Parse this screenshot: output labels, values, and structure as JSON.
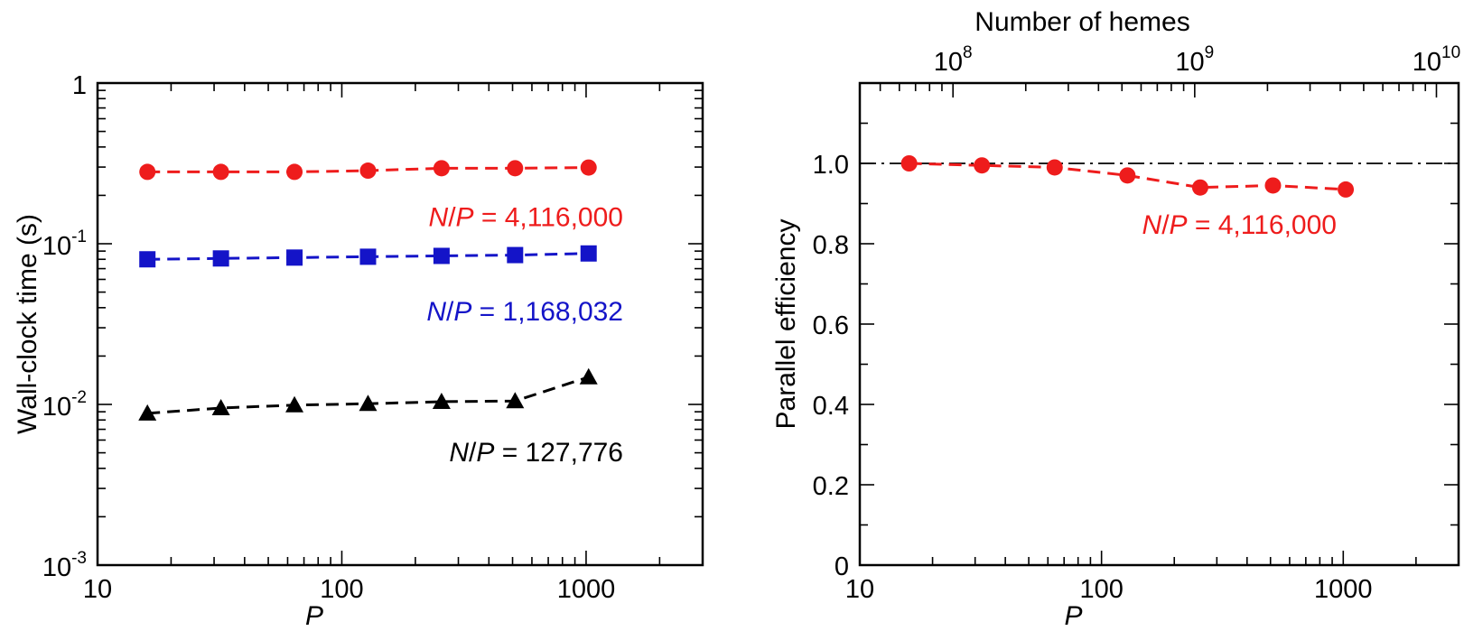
{
  "chart_data": [
    {
      "type": "line",
      "xlabel": "P",
      "ylabel": "Wall-clock time (s)",
      "xscale": "log",
      "yscale": "log",
      "xlim": [
        10,
        3000
      ],
      "ylim": [
        0.001,
        1
      ],
      "xticks": [
        {
          "value": 10,
          "label": "10"
        },
        {
          "value": 100,
          "label": "100"
        },
        {
          "value": 1000,
          "label": "1000"
        }
      ],
      "yticks": [
        {
          "value": 0.001,
          "base": "10",
          "exp": "-3"
        },
        {
          "value": 0.01,
          "base": "10",
          "exp": "-2"
        },
        {
          "value": 0.1,
          "base": "10",
          "exp": "-1"
        },
        {
          "value": 1,
          "base": "1",
          "exp": ""
        }
      ],
      "grid": false,
      "series": [
        {
          "color": "#ee1c1c",
          "marker": "circle",
          "x": [
            16,
            32,
            64,
            128,
            256,
            512,
            1024
          ],
          "y": [
            0.28,
            0.28,
            0.28,
            0.285,
            0.295,
            0.295,
            0.298
          ],
          "annotation": {
            "italic1": "N",
            "slash": "/",
            "italic2": "P",
            "rest": " = 4,116,000",
            "x": 690,
            "y": 0.148
          }
        },
        {
          "color": "#1414c8",
          "marker": "square",
          "x": [
            16,
            32,
            64,
            128,
            256,
            512,
            1024
          ],
          "y": [
            0.08,
            0.081,
            0.082,
            0.083,
            0.084,
            0.085,
            0.087
          ],
          "annotation": {
            "italic1": "N",
            "slash": "/",
            "italic2": "P",
            "rest": " = 1,168,032",
            "x": 690,
            "y": 0.0385
          }
        },
        {
          "color": "#000000",
          "marker": "triangle",
          "x": [
            16,
            32,
            64,
            128,
            256,
            512,
            1024
          ],
          "y": [
            0.0088,
            0.0095,
            0.0099,
            0.0101,
            0.0104,
            0.0105,
            0.0148
          ],
          "annotation": {
            "italic1": "N",
            "slash": "/",
            "italic2": "P",
            "rest": " = 127,776",
            "x": 690,
            "y": 0.0051
          }
        }
      ]
    },
    {
      "type": "line",
      "xlabel": "P",
      "ylabel": "Parallel efficiency",
      "x2label": "Number of hemes",
      "xscale": "log",
      "xlim": [
        10,
        3000
      ],
      "ylim": [
        0,
        1.2
      ],
      "xticks": [
        {
          "value": 10,
          "label": "10"
        },
        {
          "value": 100,
          "label": "100"
        },
        {
          "value": 1000,
          "label": "1000"
        }
      ],
      "yticks": [
        {
          "value": 0,
          "label": "0"
        },
        {
          "value": 0.2,
          "label": "0.2"
        },
        {
          "value": 0.4,
          "label": "0.4"
        },
        {
          "value": 0.6,
          "label": "0.6"
        },
        {
          "value": 0.8,
          "label": "0.8"
        },
        {
          "value": 1.0,
          "label": "1.0"
        }
      ],
      "x2ticks": [
        {
          "value": 100000000,
          "base": "10",
          "exp": "8"
        },
        {
          "value": 1000000000,
          "base": "10",
          "exp": "9"
        },
        {
          "value": 10000000000,
          "base": "10",
          "exp": "10"
        }
      ],
      "x2_per_P": 4116000,
      "reference_line": {
        "y": 1.0,
        "style": "dash-dot"
      },
      "grid": false,
      "series": [
        {
          "color": "#ee1c1c",
          "marker": "circle",
          "x": [
            16,
            32,
            64,
            128,
            256,
            512,
            1024
          ],
          "y": [
            1.0,
            0.995,
            0.99,
            0.97,
            0.94,
            0.945,
            0.935
          ],
          "annotation": {
            "italic1": "N",
            "slash": "/",
            "italic2": "P",
            "rest": " = 4,116,000",
            "x": 1480,
            "y": 0.85
          }
        }
      ]
    }
  ]
}
